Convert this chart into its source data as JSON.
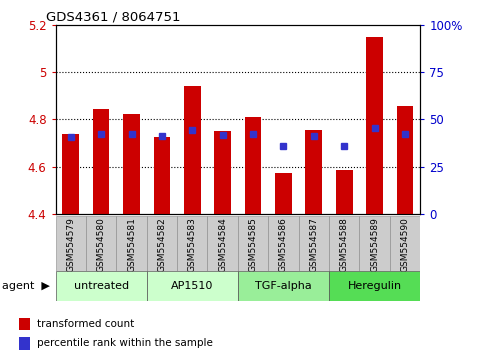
{
  "title": "GDS4361 / 8064751",
  "samples": [
    "GSM554579",
    "GSM554580",
    "GSM554581",
    "GSM554582",
    "GSM554583",
    "GSM554584",
    "GSM554585",
    "GSM554586",
    "GSM554587",
    "GSM554588",
    "GSM554589",
    "GSM554590"
  ],
  "bar_values": [
    4.74,
    4.845,
    4.825,
    4.725,
    4.94,
    4.75,
    4.81,
    4.575,
    4.755,
    4.585,
    5.15,
    4.855
  ],
  "percentile_values": [
    4.725,
    4.74,
    4.74,
    4.73,
    4.755,
    4.735,
    4.74,
    4.69,
    4.73,
    4.69,
    4.765,
    4.74
  ],
  "ymin": 4.4,
  "ymax": 5.2,
  "yticks": [
    4.4,
    4.6,
    4.8,
    5.0,
    5.2
  ],
  "ytick_labels": [
    "4.4",
    "4.6",
    "4.8",
    "5",
    "5.2"
  ],
  "y2min": 0,
  "y2max": 100,
  "y2ticks": [
    0,
    25,
    50,
    75,
    100
  ],
  "y2tick_labels": [
    "0",
    "25",
    "50",
    "75",
    "100%"
  ],
  "bar_color": "#cc0000",
  "marker_color": "#3333cc",
  "agent_groups": [
    {
      "label": "untreated",
      "start": 0,
      "end": 3,
      "color": "#ccffcc"
    },
    {
      "label": "AP1510",
      "start": 3,
      "end": 6,
      "color": "#ccffcc"
    },
    {
      "label": "TGF-alpha",
      "start": 6,
      "end": 9,
      "color": "#99ee99"
    },
    {
      "label": "Heregulin",
      "start": 9,
      "end": 12,
      "color": "#55dd55"
    }
  ],
  "bar_width": 0.55,
  "legend_items": [
    {
      "color": "#cc0000",
      "label": "transformed count"
    },
    {
      "color": "#3333cc",
      "label": "percentile rank within the sample"
    }
  ],
  "grid_color": "black",
  "tick_color_left": "#cc0000",
  "tick_color_right": "#0000cc",
  "label_bg_color": "#cccccc"
}
